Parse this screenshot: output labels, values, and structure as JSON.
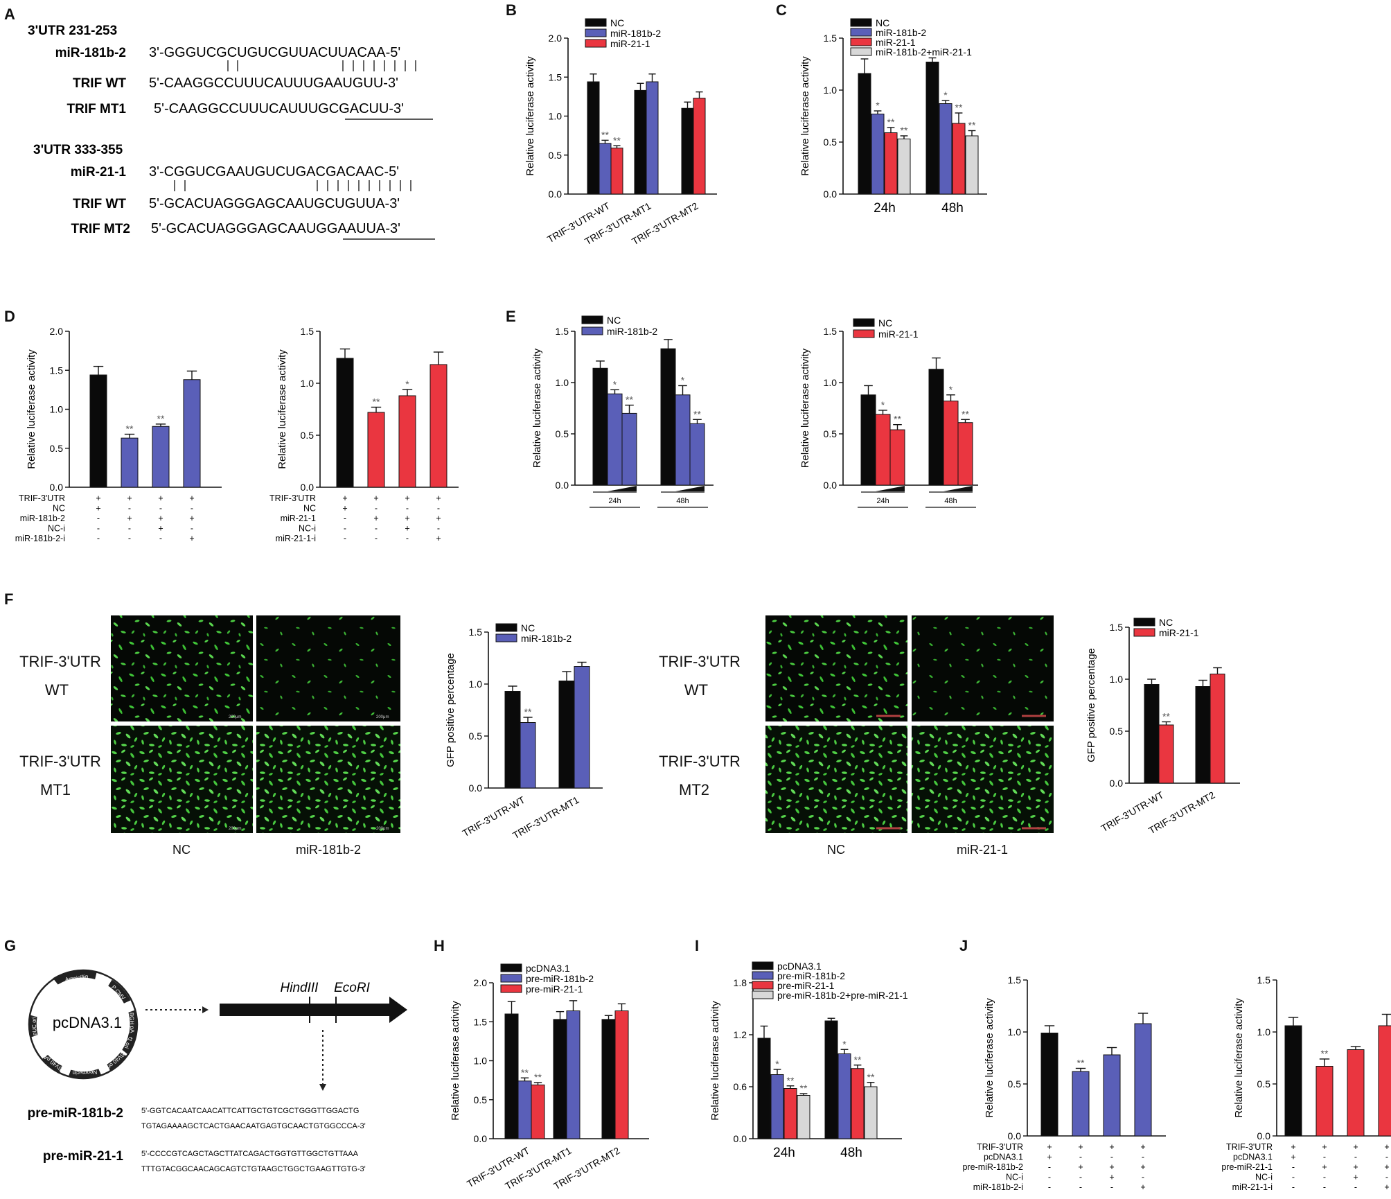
{
  "colors": {
    "black": "#0a0a0a",
    "blue": "#5a5fb8",
    "red": "#ea3640",
    "grey": "#d8d8d8",
    "green_cells": "#45c83a"
  },
  "panel_letters": [
    "A",
    "B",
    "C",
    "D",
    "E",
    "F",
    "G",
    "H",
    "I",
    "J"
  ],
  "panel_a": {
    "header1": "3'UTR  231-253",
    "label_mir1": "miR-181b-2",
    "seq_mir1": "3'-GGGUCGCUGUCGUUACUUACAA-5'",
    "label_wt1": "TRIF WT",
    "seq_wt1": "5'-CAAGGCCUUUCAUUUGAAUGUU-3'",
    "label_mt1": "TRIF MT1",
    "seq_mt1": "5'-CAAGGCCUUUCAUUUGCGACUU-3'",
    "header2": "3'UTR  333-355",
    "label_mir2": "miR-21-1",
    "seq_mir2": "3'-CGGUCGAAUGUCUGACGACAAC-5'",
    "label_wt2": "TRIF WT",
    "seq_wt2": "5'-GCACUAGGGAGCAAUGCUGUUA-3'",
    "label_mt2": "TRIF MT2",
    "seq_mt2": "5'-GCACUAGGGAGCAAUGGAAUUA-3'"
  },
  "panel_f": {
    "row_wt_line1": "TRIF-3'UTR",
    "row_wt_line2": "WT",
    "row_mt1_line1": "TRIF-3'UTR",
    "row_mt1_line2": "MT1",
    "row_mt2_line1": "TRIF-3'UTR",
    "row_mt2_line2": "MT2",
    "col_nc": "NC",
    "col_mir181": "miR-181b-2",
    "col_mir21": "miR-21-1",
    "scale_bar": "200μm"
  },
  "panel_g": {
    "plasmid_name": "pcDNA3.1",
    "plasmid_features": [
      "Ampicillin",
      "P CMV",
      "BGH pA",
      "f1 ori",
      "SV40 ori",
      "Neomycin",
      "SV40 pA",
      "pUC ori"
    ],
    "site1": "HindIII",
    "site2": "EcoRI",
    "pre181_label": "pre-miR-181b-2",
    "pre181_seq1": "5'-GGTCACAATCAACATTCATTGCTGTCGCTGGGTTGGACTG",
    "pre181_seq2": "TGTAGAAAAGCTCACTGAACAATGAGTGCAACTGTGGCCCA-3'",
    "pre21_label": "pre-miR-21-1",
    "pre21_seq1": "5'-CCCCGTCAGCTAGCTTATCAGACTGGTGTTGGCTGTTAAA",
    "pre21_seq2": "TTTGTACGGCAACAGCAGTCTGTAAGCTGGCTGAAGTTGTG-3'"
  },
  "chart_data": [
    {
      "id": "B",
      "type": "bar",
      "ylabel": "Relative luciferase activity",
      "ylim": [
        0,
        2.0
      ],
      "yticks": [
        "0.0",
        "0.5",
        "1.0",
        "1.5",
        "2.0"
      ],
      "categories": [
        "TRIF-3'UTR-WT",
        "TRIF-3'UTR-MT1",
        "TRIF-3'UTR-MT2"
      ],
      "series": [
        {
          "name": "NC",
          "color": "black",
          "values": [
            1.44,
            1.33,
            1.1
          ],
          "errors": [
            0.1,
            0.09,
            0.08
          ]
        },
        {
          "name": "miR-181b-2",
          "color": "blue",
          "values": [
            0.65,
            1.44,
            null
          ],
          "errors": [
            0.04,
            0.1,
            null
          ],
          "sig": [
            "**",
            "",
            ""
          ]
        },
        {
          "name": "miR-21-1",
          "color": "red",
          "values": [
            0.59,
            null,
            1.23
          ],
          "errors": [
            0.03,
            null,
            0.08
          ],
          "sig": [
            "**",
            "",
            ""
          ]
        }
      ],
      "legend": "top-left"
    },
    {
      "id": "C",
      "type": "bar",
      "ylabel": "Relative luciferase activity",
      "ylim": [
        0,
        1.5
      ],
      "yticks": [
        "0.0",
        "0.5",
        "1.0",
        "1.5"
      ],
      "categories": [
        "24h",
        "48h"
      ],
      "series": [
        {
          "name": "NC",
          "color": "black",
          "values": [
            1.16,
            1.27
          ],
          "errors": [
            0.14,
            0.04
          ]
        },
        {
          "name": "miR-181b-2",
          "color": "blue",
          "values": [
            0.77,
            0.87
          ],
          "errors": [
            0.03,
            0.03
          ],
          "sig": [
            "*",
            "*"
          ]
        },
        {
          "name": "miR-21-1",
          "color": "red",
          "values": [
            0.59,
            0.68
          ],
          "errors": [
            0.05,
            0.1
          ],
          "sig": [
            "**",
            "**"
          ]
        },
        {
          "name": "miR-181b-2+miR-21-1",
          "color": "grey",
          "values": [
            0.53,
            0.56
          ],
          "errors": [
            0.03,
            0.05
          ],
          "sig": [
            "**",
            "**"
          ]
        }
      ],
      "legend": "top-left"
    },
    {
      "id": "D1",
      "type": "bar",
      "ylabel": "Relative luciferase activity",
      "ylim": [
        0,
        2.0
      ],
      "yticks": [
        "0.0",
        "0.5",
        "1.0",
        "1.5",
        "2.0"
      ],
      "values": [
        1.44,
        0.63,
        0.78,
        1.38
      ],
      "errors": [
        0.11,
        0.05,
        0.03,
        0.11
      ],
      "colors": [
        "black",
        "blue",
        "blue",
        "blue"
      ],
      "sig": [
        "",
        "**",
        "**",
        ""
      ],
      "row_labels": [
        "TRIF-3'UTR",
        "NC",
        "miR-181b-2",
        "NC-i",
        "miR-181b-2-i"
      ],
      "row_signs": [
        [
          "+",
          "+",
          "+",
          "+"
        ],
        [
          "+",
          "-",
          "-",
          "-"
        ],
        [
          "-",
          "+",
          "+",
          "+"
        ],
        [
          "-",
          "-",
          "+",
          "-"
        ],
        [
          "-",
          "-",
          "-",
          "+"
        ]
      ]
    },
    {
      "id": "D2",
      "type": "bar",
      "ylabel": "Relative luciferase activity",
      "ylim": [
        0,
        1.5
      ],
      "yticks": [
        "0.0",
        "0.5",
        "1.0",
        "1.5"
      ],
      "values": [
        1.24,
        0.72,
        0.88,
        1.18
      ],
      "errors": [
        0.09,
        0.05,
        0.06,
        0.12
      ],
      "colors": [
        "black",
        "red",
        "red",
        "red"
      ],
      "sig": [
        "",
        "**",
        "*",
        ""
      ],
      "row_labels": [
        "TRIF-3'UTR",
        "NC",
        "miR-21-1",
        "NC-i",
        "miR-21-1-i"
      ],
      "row_signs": [
        [
          "+",
          "+",
          "+",
          "+"
        ],
        [
          "+",
          "-",
          "-",
          "-"
        ],
        [
          "-",
          "+",
          "+",
          "+"
        ],
        [
          "-",
          "-",
          "+",
          "-"
        ],
        [
          "-",
          "-",
          "-",
          "+"
        ]
      ]
    },
    {
      "id": "E1",
      "type": "bar",
      "ylabel": "Relative luciferase activity",
      "ylim": [
        0,
        1.5
      ],
      "yticks": [
        "0.0",
        "0.5",
        "1.0",
        "1.5"
      ],
      "categories": [
        "24h",
        "48h"
      ],
      "group_colors": [
        "black",
        "blue",
        "blue"
      ],
      "values": [
        [
          1.14,
          0.89,
          0.7
        ],
        [
          1.33,
          0.88,
          0.6
        ]
      ],
      "errors": [
        [
          0.07,
          0.04,
          0.08
        ],
        [
          0.09,
          0.09,
          0.04
        ]
      ],
      "sig": [
        [
          "",
          "*",
          "**"
        ],
        [
          "",
          "*",
          "**"
        ]
      ],
      "legend_items": [
        {
          "name": "NC",
          "color": "black"
        },
        {
          "name": "miR-181b-2",
          "color": "blue"
        }
      ]
    },
    {
      "id": "E2",
      "type": "bar",
      "ylabel": "Relative luciferase activity",
      "ylim": [
        0,
        1.5
      ],
      "yticks": [
        "0.0",
        "0.5",
        "1.0",
        "1.5"
      ],
      "categories": [
        "24h",
        "48h"
      ],
      "group_colors": [
        "black",
        "red",
        "red"
      ],
      "values": [
        [
          0.88,
          0.69,
          0.54
        ],
        [
          1.13,
          0.82,
          0.61
        ]
      ],
      "errors": [
        [
          0.09,
          0.04,
          0.05
        ],
        [
          0.11,
          0.06,
          0.03
        ]
      ],
      "sig": [
        [
          "",
          "*",
          "**"
        ],
        [
          "",
          "*",
          "**"
        ]
      ],
      "legend_items": [
        {
          "name": "NC",
          "color": "black"
        },
        {
          "name": "miR-21-1",
          "color": "red"
        }
      ]
    },
    {
      "id": "F1",
      "type": "bar",
      "ylabel": "GFP positive percentage",
      "ylim": [
        0,
        1.5
      ],
      "yticks": [
        "0.0",
        "0.5",
        "1.0",
        "1.5"
      ],
      "categories": [
        "TRIF-3'UTR-WT",
        "TRIF-3'UTR-MT1"
      ],
      "series": [
        {
          "name": "NC",
          "color": "black",
          "values": [
            0.93,
            1.03
          ],
          "errors": [
            0.05,
            0.09
          ]
        },
        {
          "name": "miR-181b-2",
          "color": "blue",
          "values": [
            0.63,
            1.17
          ],
          "errors": [
            0.05,
            0.04
          ],
          "sig": [
            "**",
            ""
          ]
        }
      ]
    },
    {
      "id": "F2",
      "type": "bar",
      "ylabel": "GFP positive percentage",
      "ylim": [
        0,
        1.5
      ],
      "yticks": [
        "0.0",
        "0.5",
        "1.0",
        "1.5"
      ],
      "categories": [
        "TRIF-3'UTR-WT",
        "TRIF-3'UTR-MT2"
      ],
      "series": [
        {
          "name": "NC",
          "color": "black",
          "values": [
            0.95,
            0.93
          ],
          "errors": [
            0.05,
            0.06
          ]
        },
        {
          "name": "miR-21-1",
          "color": "red",
          "values": [
            0.56,
            1.05
          ],
          "errors": [
            0.03,
            0.06
          ],
          "sig": [
            "**",
            ""
          ]
        }
      ]
    },
    {
      "id": "H",
      "type": "bar",
      "ylabel": "Relative luciferase activity",
      "ylim": [
        0,
        2.0
      ],
      "yticks": [
        "0.0",
        "0.5",
        "1.0",
        "1.5",
        "2.0"
      ],
      "categories": [
        "TRIF-3'UTR-WT",
        "TRIF-3'UTR-MT1",
        "TRIF-3'UTR-MT2"
      ],
      "series": [
        {
          "name": "pcDNA3.1",
          "color": "black",
          "values": [
            1.6,
            1.53,
            1.53
          ],
          "errors": [
            0.16,
            0.1,
            0.05
          ]
        },
        {
          "name": "pre-miR-181b-2",
          "color": "blue",
          "values": [
            0.74,
            1.64,
            null
          ],
          "errors": [
            0.04,
            0.13,
            null
          ],
          "sig": [
            "**",
            "",
            ""
          ]
        },
        {
          "name": "pre-miR-21-1",
          "color": "red",
          "values": [
            0.69,
            null,
            1.64
          ],
          "errors": [
            0.03,
            null,
            0.09
          ],
          "sig": [
            "**",
            "",
            ""
          ]
        }
      ]
    },
    {
      "id": "I",
      "type": "bar",
      "ylabel": "Relative luciferase activity",
      "ylim": [
        0,
        1.8
      ],
      "yticks": [
        "0.0",
        "0.6",
        "1.2",
        "1.8"
      ],
      "categories": [
        "24h",
        "48h"
      ],
      "series": [
        {
          "name": "pcDNA3.1",
          "color": "black",
          "values": [
            1.16,
            1.36
          ],
          "errors": [
            0.14,
            0.03
          ]
        },
        {
          "name": "pre-miR-181b-2",
          "color": "blue",
          "values": [
            0.74,
            0.98
          ],
          "errors": [
            0.06,
            0.05
          ],
          "sig": [
            "*",
            "*"
          ]
        },
        {
          "name": "pre-miR-21-1",
          "color": "red",
          "values": [
            0.58,
            0.81
          ],
          "errors": [
            0.03,
            0.04
          ],
          "sig": [
            "**",
            "**"
          ]
        },
        {
          "name": "pre-miR-181b-2+pre-miR-21-1",
          "color": "grey",
          "values": [
            0.5,
            0.6
          ],
          "errors": [
            0.02,
            0.05
          ],
          "sig": [
            "**",
            "**"
          ]
        }
      ]
    },
    {
      "id": "J1",
      "type": "bar",
      "ylabel": "Relative luciferase activity",
      "ylim": [
        0,
        1.5
      ],
      "yticks": [
        "0.0",
        "0.5",
        "1.0",
        "1.5"
      ],
      "values": [
        0.99,
        0.62,
        0.78,
        1.08
      ],
      "errors": [
        0.07,
        0.03,
        0.07,
        0.1
      ],
      "colors": [
        "black",
        "blue",
        "blue",
        "blue"
      ],
      "sig": [
        "",
        "**",
        "",
        ""
      ],
      "row_labels": [
        "TRIF-3'UTR",
        "pcDNA3.1",
        "pre-miR-181b-2",
        "NC-i",
        "miR-181b-2-i"
      ],
      "row_signs": [
        [
          "+",
          "+",
          "+",
          "+"
        ],
        [
          "+",
          "-",
          "-",
          "-"
        ],
        [
          "-",
          "+",
          "+",
          "+"
        ],
        [
          "-",
          "-",
          "+",
          "-"
        ],
        [
          "-",
          "-",
          "-",
          "+"
        ]
      ]
    },
    {
      "id": "J2",
      "type": "bar",
      "ylabel": "Relative luciferase activity",
      "ylim": [
        0,
        1.5
      ],
      "yticks": [
        "0.0",
        "0.5",
        "1.0",
        "1.5"
      ],
      "values": [
        1.06,
        0.67,
        0.83,
        1.06
      ],
      "errors": [
        0.08,
        0.07,
        0.03,
        0.11
      ],
      "colors": [
        "black",
        "red",
        "red",
        "red"
      ],
      "sig": [
        "",
        "**",
        "",
        ""
      ],
      "row_labels": [
        "TRIF-3'UTR",
        "pcDNA3.1",
        "pre-miR-21-1",
        "NC-i",
        "miR-21-1-i"
      ],
      "row_signs": [
        [
          "+",
          "+",
          "+",
          "+"
        ],
        [
          "+",
          "-",
          "-",
          "-"
        ],
        [
          "-",
          "+",
          "+",
          "+"
        ],
        [
          "-",
          "-",
          "+",
          "-"
        ],
        [
          "-",
          "-",
          "-",
          "+"
        ]
      ]
    }
  ]
}
